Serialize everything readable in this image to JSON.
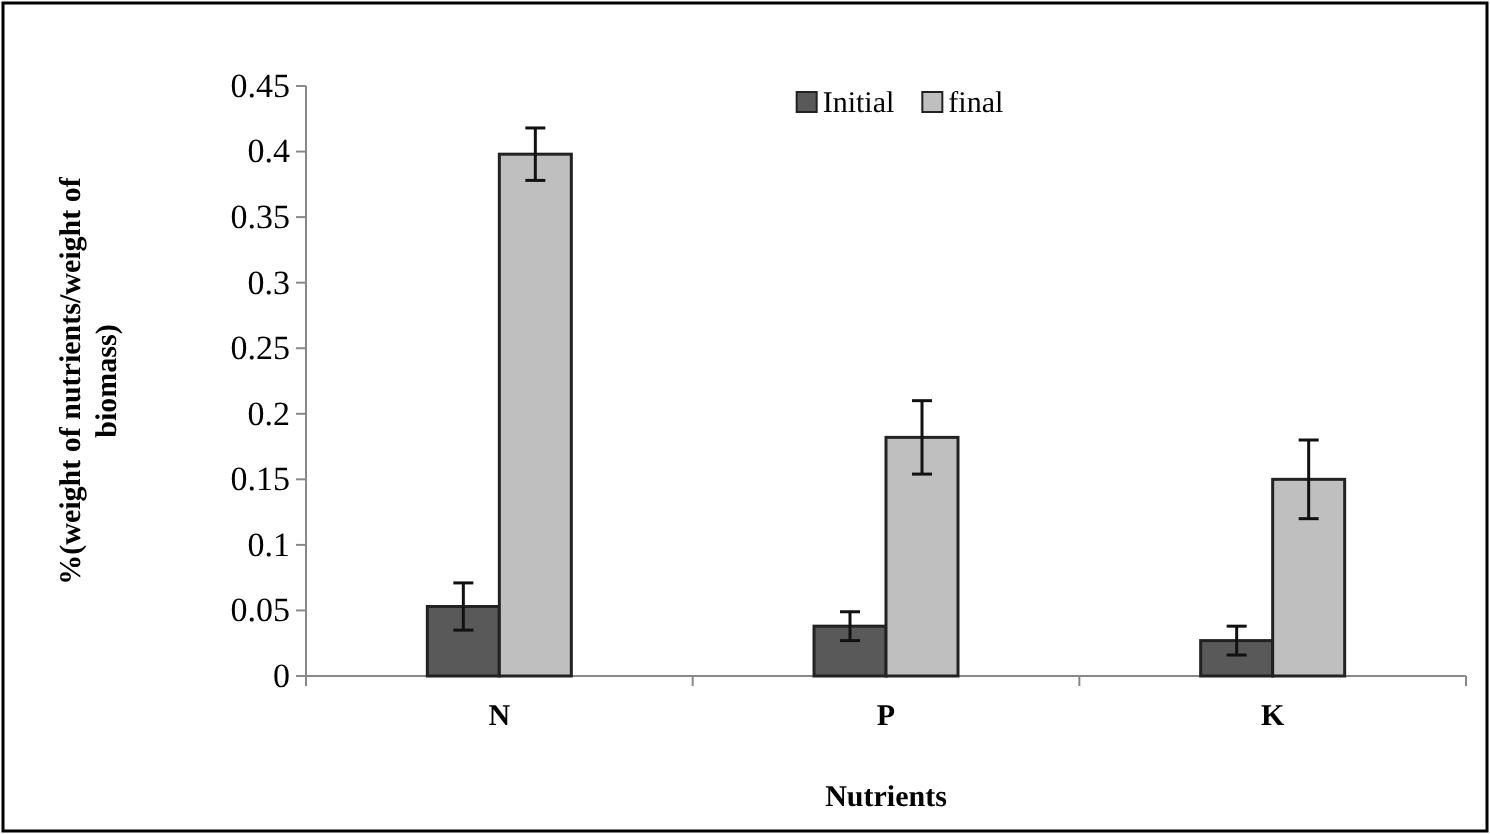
{
  "chart_data": {
    "type": "bar",
    "xlabel": "Nutrients",
    "ylabel": "%(weight of nutrients/weight of biomass)",
    "categories": [
      "N",
      "P",
      "K"
    ],
    "series": [
      {
        "name": "Initial",
        "color": "#595959",
        "values": [
          0.053,
          0.038,
          0.027
        ],
        "errors": [
          0.018,
          0.011,
          0.011
        ]
      },
      {
        "name": "final",
        "color": "#bfbfbf",
        "values": [
          0.398,
          0.182,
          0.15
        ],
        "errors": [
          0.02,
          0.028,
          0.03
        ]
      }
    ],
    "ylim": [
      0,
      0.45
    ],
    "yticks": [
      0,
      0.05,
      0.1,
      0.15,
      0.2,
      0.25,
      0.3,
      0.35,
      0.4,
      0.45
    ],
    "grid": false,
    "legend": "top"
  }
}
